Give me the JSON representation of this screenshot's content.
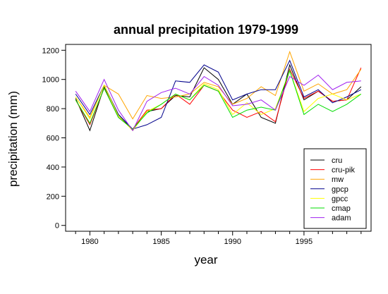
{
  "chart_data": {
    "type": "line",
    "title": "annual precipitation 1979-1999",
    "xlabel": "year",
    "ylabel": "precipitation (mm)",
    "xlim": [
      1978.3,
      1999.7
    ],
    "ylim": [
      -40,
      1240
    ],
    "x_ticks": [
      1980,
      1985,
      1990,
      1995
    ],
    "y_ticks": [
      0,
      200,
      400,
      600,
      800,
      1000,
      1200
    ],
    "grid": false,
    "legend_position": "bottom-right",
    "x": [
      1979,
      1980,
      1981,
      1982,
      1983,
      1984,
      1985,
      1986,
      1987,
      1988,
      1989,
      1990,
      1991,
      1992,
      1993,
      1994,
      1995,
      1996,
      1997,
      1998,
      1999
    ],
    "series": [
      {
        "name": "cru",
        "color": "#000000",
        "values": [
          870,
          650,
          950,
          760,
          650,
          780,
          800,
          890,
          880,
          1080,
          1000,
          830,
          900,
          740,
          700,
          1100,
          860,
          920,
          850,
          860,
          950
        ]
      },
      {
        "name": "cru-pik",
        "color": "#ff0000",
        "values": [
          860,
          690,
          940,
          740,
          660,
          790,
          800,
          900,
          830,
          960,
          920,
          790,
          740,
          780,
          710,
          1070,
          870,
          920,
          850,
          860,
          1080
        ]
      },
      {
        "name": "mw",
        "color": "#ffa500",
        "values": [
          880,
          740,
          960,
          900,
          730,
          890,
          870,
          880,
          900,
          980,
          950,
          830,
          870,
          950,
          890,
          1190,
          920,
          970,
          900,
          930,
          1070
        ]
      },
      {
        "name": "gpcp",
        "color": "#00008b",
        "values": [
          900,
          760,
          960,
          760,
          660,
          690,
          740,
          990,
          980,
          1100,
          1050,
          860,
          900,
          930,
          930,
          1130,
          880,
          930,
          840,
          880,
          930
        ]
      },
      {
        "name": "gpcc",
        "color": "#ffff00",
        "values": [
          880,
          730,
          960,
          750,
          650,
          780,
          830,
          900,
          860,
          970,
          930,
          760,
          840,
          760,
          800,
          1060,
          780,
          870,
          900,
          860,
          900
        ]
      },
      {
        "name": "cmap",
        "color": "#00dd00",
        "values": [
          860,
          700,
          940,
          740,
          660,
          770,
          830,
          900,
          860,
          960,
          920,
          740,
          790,
          810,
          790,
          1060,
          760,
          830,
          780,
          830,
          900
        ]
      },
      {
        "name": "adam",
        "color": "#a020f0",
        "values": [
          920,
          780,
          1000,
          790,
          650,
          850,
          910,
          940,
          900,
          1020,
          960,
          820,
          830,
          860,
          790,
          1020,
          960,
          1030,
          930,
          980,
          990
        ]
      }
    ]
  }
}
